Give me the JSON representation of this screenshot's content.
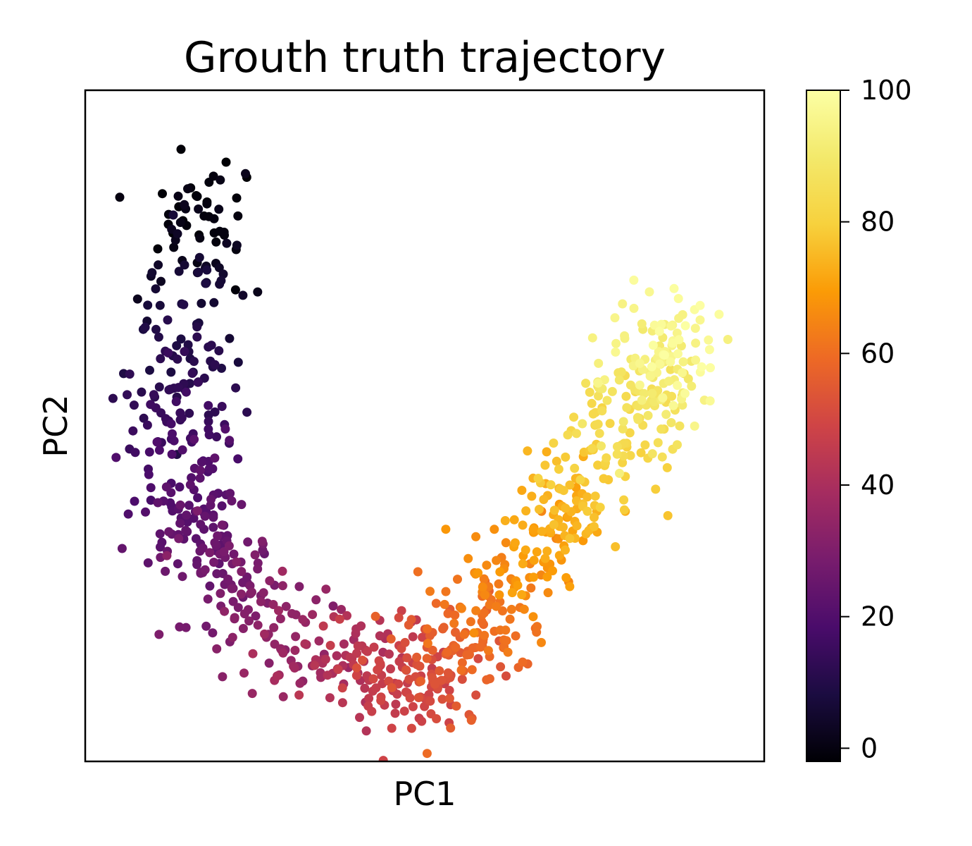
{
  "chart_data": {
    "type": "scatter",
    "title": "Grouth truth trajectory",
    "xlabel": "PC1",
    "ylabel": "PC2",
    "x_ticks": "none",
    "y_ticks": "none",
    "grid": false,
    "legend": "none",
    "colorbar": {
      "colormap": "inferno",
      "position": "right",
      "range": [
        -2,
        100
      ],
      "ticks": [
        0,
        20,
        40,
        60,
        80,
        100
      ],
      "tick_labels": [
        "0",
        "20",
        "40",
        "60",
        "80",
        "100"
      ]
    },
    "trajectory": {
      "description_points": "Cells along a U-shaped trajectory in PC space, colored by pseudotime",
      "n_points": 1000,
      "pseudotime_range": [
        0,
        100
      ],
      "knots": [
        {
          "t": 0,
          "pc1": -2.3,
          "pc2": 3.6
        },
        {
          "t": 10,
          "pc1": -2.4,
          "pc2": 2.2
        },
        {
          "t": 20,
          "pc1": -2.6,
          "pc2": 0.5
        },
        {
          "t": 30,
          "pc1": -1.9,
          "pc2": -0.9
        },
        {
          "t": 40,
          "pc1": -0.8,
          "pc2": -1.7
        },
        {
          "t": 50,
          "pc1": 0.1,
          "pc2": -2.0
        },
        {
          "t": 60,
          "pc1": 0.8,
          "pc2": -1.5
        },
        {
          "t": 70,
          "pc1": 1.5,
          "pc2": -0.5
        },
        {
          "t": 80,
          "pc1": 2.3,
          "pc2": 0.5
        },
        {
          "t": 90,
          "pc1": 2.9,
          "pc2": 1.4
        },
        {
          "t": 100,
          "pc1": 3.2,
          "pc2": 2.0
        }
      ],
      "xlim": [
        -3.6,
        4.2
      ],
      "ylim": [
        -2.9,
        4.8
      ]
    }
  }
}
